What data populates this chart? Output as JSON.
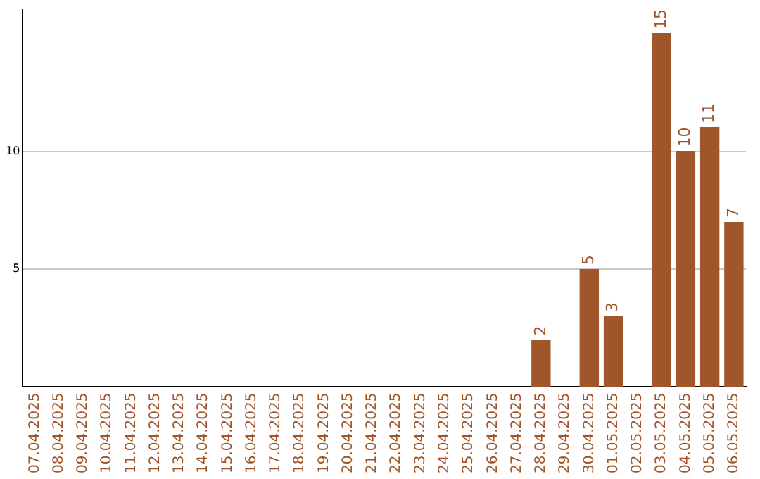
{
  "chart_data": {
    "type": "bar",
    "categories": [
      "07.04.2025",
      "08.04.2025",
      "09.04.2025",
      "10.04.2025",
      "11.04.2025",
      "12.04.2025",
      "13.04.2025",
      "14.04.2025",
      "15.04.2025",
      "16.04.2025",
      "17.04.2025",
      "18.04.2025",
      "19.04.2025",
      "20.04.2025",
      "21.04.2025",
      "22.04.2025",
      "23.04.2025",
      "24.04.2025",
      "25.04.2025",
      "26.04.2025",
      "27.04.2025",
      "28.04.2025",
      "29.04.2025",
      "30.04.2025",
      "01.05.2025",
      "02.05.2025",
      "03.05.2025",
      "04.05.2025",
      "05.05.2025",
      "06.05.2025"
    ],
    "values": [
      0,
      0,
      0,
      0,
      0,
      0,
      0,
      0,
      0,
      0,
      0,
      0,
      0,
      0,
      0,
      0,
      0,
      0,
      0,
      0,
      0,
      2,
      0,
      5,
      3,
      0,
      15,
      10,
      11,
      7
    ],
    "value_labels": [
      null,
      null,
      null,
      null,
      null,
      null,
      null,
      null,
      null,
      null,
      null,
      null,
      null,
      null,
      null,
      null,
      null,
      null,
      null,
      null,
      null,
      "2",
      null,
      "5",
      "3",
      null,
      "15",
      "10",
      "11",
      "7"
    ],
    "color": "#a0562a",
    "ylim": [
      0,
      16
    ],
    "yticks": [
      5,
      10
    ],
    "grid": "y",
    "legend": false
  }
}
